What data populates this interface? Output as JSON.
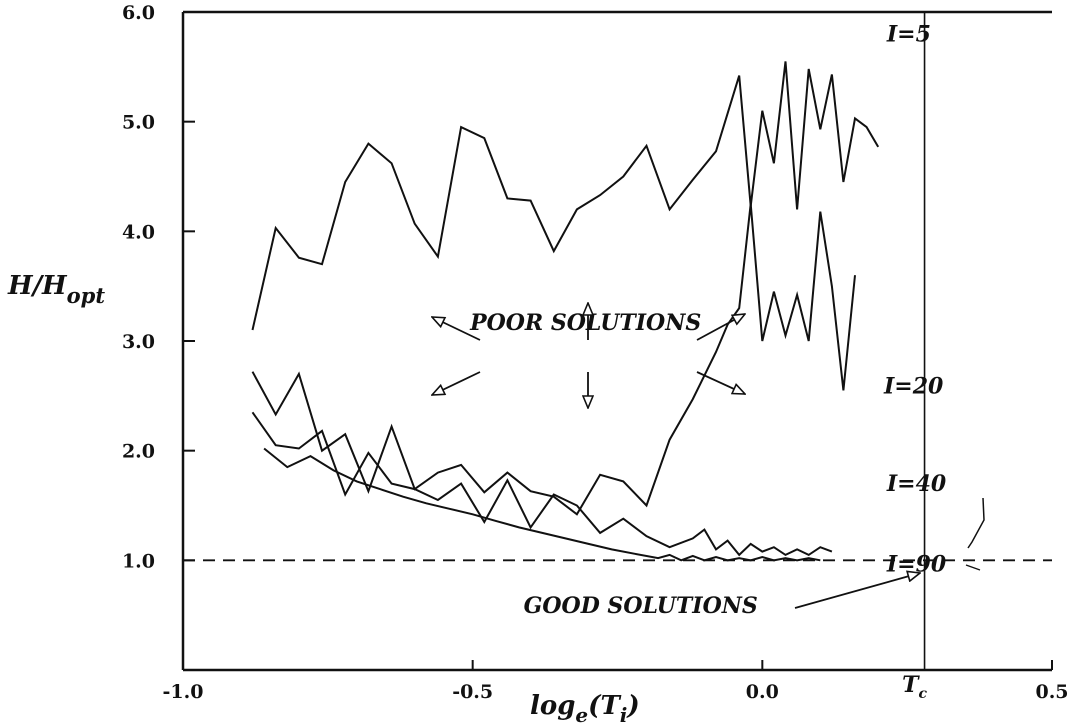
{
  "chart_data": {
    "type": "line",
    "xlabel": "log",
    "xlabel_sub": "e",
    "xlabel_arg": "(T",
    "xlabel_arg_sub": "i",
    "xlabel_close": ")",
    "ylabel": "H/H",
    "ylabel_sub": "opt",
    "xlim": [
      -1.0,
      0.5
    ],
    "ylim": [
      0.0,
      6.0
    ],
    "x_ticks": [
      {
        "value": -1.0,
        "label": "-1.0"
      },
      {
        "value": -0.5,
        "label": "-0.5"
      },
      {
        "value": 0.0,
        "label": "0.0"
      },
      {
        "value": 0.5,
        "label": "0.5"
      }
    ],
    "y_ticks": [
      {
        "value": 1.0,
        "label": "1.0"
      },
      {
        "value": 2.0,
        "label": "2.0"
      },
      {
        "value": 3.0,
        "label": "3.0"
      },
      {
        "value": 4.0,
        "label": "4.0"
      },
      {
        "value": 5.0,
        "label": "5.0"
      },
      {
        "value": 6.0,
        "label": "6.0"
      }
    ],
    "grid": false,
    "reference_lines": [
      {
        "kind": "horizontal",
        "value": 1.0,
        "style": "dashed"
      },
      {
        "kind": "vertical",
        "value": 0.28,
        "style": "solid",
        "label": "T",
        "label_sub": "c"
      }
    ],
    "series": [
      {
        "name": "I=5",
        "points": [
          [
            -0.88,
            3.1
          ],
          [
            -0.84,
            4.03
          ],
          [
            -0.8,
            3.76
          ],
          [
            -0.76,
            3.7
          ],
          [
            -0.72,
            4.45
          ],
          [
            -0.68,
            4.8
          ],
          [
            -0.64,
            4.62
          ],
          [
            -0.6,
            4.07
          ],
          [
            -0.56,
            3.77
          ],
          [
            -0.52,
            4.95
          ],
          [
            -0.48,
            4.85
          ],
          [
            -0.44,
            4.3
          ],
          [
            -0.4,
            4.28
          ],
          [
            -0.36,
            3.82
          ],
          [
            -0.32,
            4.2
          ],
          [
            -0.28,
            4.33
          ],
          [
            -0.24,
            4.5
          ],
          [
            -0.2,
            4.78
          ],
          [
            -0.16,
            4.2
          ],
          [
            -0.12,
            4.47
          ],
          [
            -0.08,
            4.73
          ],
          [
            -0.04,
            5.42
          ],
          [
            -0.02,
            4.23
          ],
          [
            0.0,
            5.1
          ],
          [
            0.02,
            4.62
          ],
          [
            0.04,
            5.55
          ],
          [
            0.06,
            4.2
          ],
          [
            0.08,
            5.48
          ],
          [
            0.1,
            4.93
          ],
          [
            0.12,
            5.43
          ],
          [
            0.14,
            4.45
          ],
          [
            0.16,
            5.03
          ],
          [
            0.18,
            4.95
          ],
          [
            0.2,
            4.77
          ]
        ]
      },
      {
        "name": "I=20",
        "points": [
          [
            -0.88,
            2.72
          ],
          [
            -0.84,
            2.33
          ],
          [
            -0.8,
            2.7
          ],
          [
            -0.76,
            2.0
          ],
          [
            -0.72,
            2.15
          ],
          [
            -0.68,
            1.63
          ],
          [
            -0.64,
            2.22
          ],
          [
            -0.6,
            1.65
          ],
          [
            -0.56,
            1.8
          ],
          [
            -0.52,
            1.87
          ],
          [
            -0.48,
            1.62
          ],
          [
            -0.44,
            1.8
          ],
          [
            -0.4,
            1.63
          ],
          [
            -0.36,
            1.58
          ],
          [
            -0.32,
            1.42
          ],
          [
            -0.28,
            1.78
          ],
          [
            -0.24,
            1.72
          ],
          [
            -0.2,
            1.5
          ],
          [
            -0.16,
            2.1
          ],
          [
            -0.12,
            2.47
          ],
          [
            -0.08,
            2.9
          ],
          [
            -0.06,
            3.15
          ],
          [
            -0.04,
            3.3
          ],
          [
            -0.02,
            4.25
          ],
          [
            0.0,
            3.0
          ],
          [
            0.02,
            3.45
          ],
          [
            0.04,
            3.05
          ],
          [
            0.06,
            3.42
          ],
          [
            0.08,
            3.0
          ],
          [
            0.1,
            4.18
          ],
          [
            0.12,
            3.5
          ],
          [
            0.14,
            2.55
          ],
          [
            0.16,
            3.6
          ]
        ]
      },
      {
        "name": "I=40",
        "points": [
          [
            -0.88,
            2.35
          ],
          [
            -0.84,
            2.05
          ],
          [
            -0.8,
            2.02
          ],
          [
            -0.76,
            2.18
          ],
          [
            -0.72,
            1.6
          ],
          [
            -0.68,
            1.98
          ],
          [
            -0.64,
            1.7
          ],
          [
            -0.6,
            1.65
          ],
          [
            -0.56,
            1.55
          ],
          [
            -0.52,
            1.7
          ],
          [
            -0.48,
            1.35
          ],
          [
            -0.44,
            1.73
          ],
          [
            -0.4,
            1.3
          ],
          [
            -0.36,
            1.6
          ],
          [
            -0.32,
            1.5
          ],
          [
            -0.28,
            1.25
          ],
          [
            -0.24,
            1.38
          ],
          [
            -0.2,
            1.22
          ],
          [
            -0.16,
            1.12
          ],
          [
            -0.12,
            1.2
          ],
          [
            -0.1,
            1.28
          ],
          [
            -0.08,
            1.1
          ],
          [
            -0.06,
            1.18
          ],
          [
            -0.04,
            1.05
          ],
          [
            -0.02,
            1.15
          ],
          [
            0.0,
            1.08
          ],
          [
            0.02,
            1.12
          ],
          [
            0.04,
            1.05
          ],
          [
            0.06,
            1.1
          ],
          [
            0.08,
            1.05
          ],
          [
            0.1,
            1.12
          ],
          [
            0.12,
            1.08
          ]
        ]
      },
      {
        "name": "I=90",
        "points": [
          [
            -0.86,
            2.02
          ],
          [
            -0.82,
            1.85
          ],
          [
            -0.78,
            1.95
          ],
          [
            -0.74,
            1.82
          ],
          [
            -0.7,
            1.72
          ],
          [
            -0.66,
            1.65
          ],
          [
            -0.62,
            1.58
          ],
          [
            -0.58,
            1.52
          ],
          [
            -0.54,
            1.47
          ],
          [
            -0.5,
            1.42
          ],
          [
            -0.46,
            1.36
          ],
          [
            -0.42,
            1.3
          ],
          [
            -0.38,
            1.25
          ],
          [
            -0.34,
            1.2
          ],
          [
            -0.3,
            1.15
          ],
          [
            -0.26,
            1.1
          ],
          [
            -0.22,
            1.06
          ],
          [
            -0.18,
            1.02
          ],
          [
            -0.16,
            1.05
          ],
          [
            -0.14,
            1.0
          ],
          [
            -0.12,
            1.04
          ],
          [
            -0.1,
            1.0
          ],
          [
            -0.08,
            1.03
          ],
          [
            -0.06,
            1.0
          ],
          [
            -0.04,
            1.02
          ],
          [
            -0.02,
            1.0
          ],
          [
            0.0,
            1.03
          ],
          [
            0.02,
            1.0
          ],
          [
            0.04,
            1.02
          ],
          [
            0.06,
            1.0
          ],
          [
            0.08,
            1.02
          ],
          [
            0.1,
            1.0
          ]
        ]
      }
    ],
    "series_labels": [
      {
        "series": "I=5",
        "prefix": "I",
        "suffix": "5",
        "x": 0.215,
        "y": 5.73
      },
      {
        "series": "I=20",
        "prefix": "I",
        "suffix": "20",
        "x": 0.21,
        "y": 2.52
      },
      {
        "series": "I=40",
        "prefix": "I",
        "suffix": "40",
        "x": 0.215,
        "y": 1.63
      },
      {
        "series": "I=90",
        "prefix": "I",
        "suffix": "90",
        "x": 0.215,
        "y": 0.9
      }
    ],
    "annotations": [
      {
        "text": "POOR SOLUTIONS",
        "x": -0.305,
        "y": 3.1
      },
      {
        "text": "GOOD SOLUTIONS",
        "x": -0.21,
        "y": 0.52
      }
    ]
  }
}
